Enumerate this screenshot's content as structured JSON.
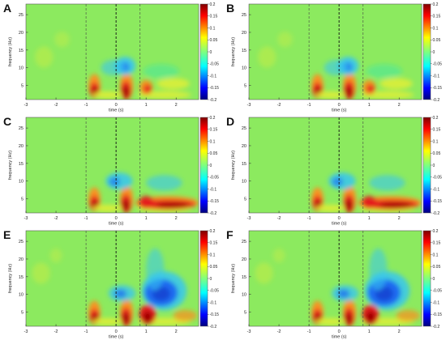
{
  "figure": {
    "colorbar": {
      "ticks": [
        "0.2",
        "0.15",
        "0.1",
        "0.05",
        "0",
        "-0.05",
        "-0.1",
        "-0.15",
        "-0.2"
      ],
      "range": [
        -0.2,
        0.2
      ],
      "colormap": "jet"
    },
    "axes": {
      "xlabel": "time (s)",
      "ylabel": "frequency (Hz)",
      "x_ticks": [
        "-3",
        "-2",
        "-1",
        "0",
        "1",
        "2"
      ],
      "y_ticks": [
        "25",
        "20",
        "15",
        "10",
        "5"
      ],
      "xlim": [
        -3,
        2.75
      ],
      "ylim": [
        1,
        28
      ]
    },
    "panels": [
      {
        "letter": "A",
        "variant": 0
      },
      {
        "letter": "B",
        "variant": 0
      },
      {
        "letter": "C",
        "variant": 1
      },
      {
        "letter": "D",
        "variant": 1
      },
      {
        "letter": "E",
        "variant": 2
      },
      {
        "letter": "F",
        "variant": 2
      }
    ]
  },
  "chart_data": {
    "type": "heatmap",
    "xlabel": "time (s)",
    "ylabel": "frequency (Hz)",
    "xlim": [
      -3,
      2.75
    ],
    "ylim": [
      1,
      28
    ],
    "color_range": [
      -0.2,
      0.2
    ],
    "event_markers_x": [
      -1.0,
      0.0,
      0.8
    ],
    "panels": [
      "A",
      "B",
      "C",
      "D",
      "E",
      "F"
    ]
  }
}
